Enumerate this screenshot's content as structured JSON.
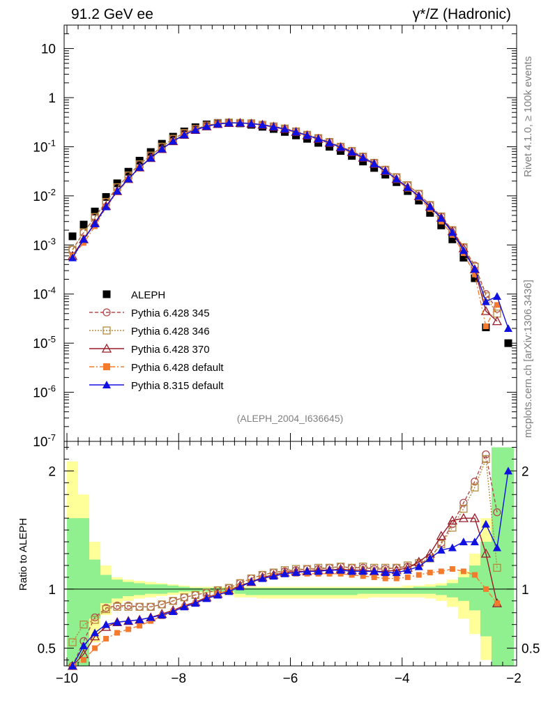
{
  "header": {
    "left_title": "91.2 GeV ee",
    "right_title": "γ*/Z (Hadronic)"
  },
  "side_labels": {
    "rivet": "Rivet 4.1.0, ≥ 100k events",
    "mcplots": "mcplots.cern.ch [arXiv:1306.3436]"
  },
  "analysis_tag": "(ALEPH_2004_I636645)",
  "ratio_ylabel": "Ratio to ALEPH",
  "colors": {
    "aleph": "#000000",
    "p345": "#b04a4a",
    "p346": "#b58a3a",
    "p370": "#9a1c28",
    "p6def": "#f47a2e",
    "p8": "#1010e0",
    "band_inner": "#90f090",
    "band_outer": "#ffff9a"
  },
  "chart_data": {
    "type": "scatter",
    "top_panel": {
      "y_scale": "log",
      "ylim": [
        1e-07,
        30
      ],
      "y_tick_labels": [
        "10",
        "1",
        "10^-1",
        "10^-2",
        "10^-3",
        "10^-4",
        "10^-5",
        "10^-6",
        "10^-7"
      ],
      "y_tick_values": [
        10,
        1,
        0.1,
        0.01,
        0.001,
        0.0001,
        1e-05,
        1e-06,
        1e-07
      ]
    },
    "ratio_panel": {
      "ylim": [
        0.35,
        2.25
      ],
      "y_tick_labels": [
        "0.5",
        "1",
        "2"
      ],
      "y_tick_values": [
        0.5,
        1,
        2
      ]
    },
    "xlim": [
      -10.05,
      -1.95
    ],
    "x_tick_labels": [
      "−10",
      "−8",
      "−6",
      "−4",
      "−2"
    ],
    "x_tick_values": [
      -10,
      -8,
      -6,
      -4,
      -2
    ],
    "x": [
      -9.9,
      -9.7,
      -9.5,
      -9.3,
      -9.1,
      -8.9,
      -8.7,
      -8.5,
      -8.3,
      -8.1,
      -7.9,
      -7.7,
      -7.5,
      -7.3,
      -7.1,
      -6.9,
      -6.7,
      -6.5,
      -6.3,
      -6.1,
      -5.9,
      -5.7,
      -5.5,
      -5.3,
      -5.1,
      -4.9,
      -4.7,
      -4.5,
      -4.3,
      -4.1,
      -3.9,
      -3.7,
      -3.5,
      -3.3,
      -3.1,
      -2.9,
      -2.7,
      -2.5,
      -2.3,
      -2.1
    ],
    "legend": [
      "ALEPH",
      "Pythia 6.428 345",
      "Pythia 6.428 346",
      "Pythia 6.428 370",
      "Pythia 6.428 default",
      "Pythia 8.315 default"
    ],
    "series": [
      {
        "name": "ALEPH",
        "values": [
          0.0015,
          0.0026,
          0.0048,
          0.0095,
          0.018,
          0.031,
          0.052,
          0.078,
          0.115,
          0.16,
          0.205,
          0.25,
          0.285,
          0.305,
          0.31,
          0.3,
          0.28,
          0.255,
          0.23,
          0.2,
          0.17,
          0.145,
          0.12,
          0.1,
          0.082,
          0.065,
          0.05,
          0.037,
          0.027,
          0.019,
          0.0125,
          0.008,
          0.0045,
          0.0025,
          0.0013,
          0.00055,
          0.00021,
          2.1e-05,
          null,
          1e-05
        ]
      },
      {
        "name": "Pythia 6.428 345",
        "values": [
          0.0008,
          0.0018,
          0.0037,
          0.0075,
          0.015,
          0.026,
          0.044,
          0.066,
          0.1,
          0.145,
          0.19,
          0.23,
          0.27,
          0.3,
          0.31,
          0.305,
          0.3,
          0.28,
          0.26,
          0.235,
          0.205,
          0.175,
          0.15,
          0.125,
          0.1,
          0.082,
          0.063,
          0.047,
          0.034,
          0.024,
          0.0165,
          0.011,
          0.0065,
          0.0038,
          0.002,
          0.0009,
          0.00038,
          0.0001,
          5e-05,
          null
        ],
        "ratio": [
          0.35,
          0.56,
          0.76,
          0.84,
          0.86,
          0.86,
          0.85,
          0.85,
          0.87,
          0.9,
          0.93,
          0.95,
          0.97,
          0.99,
          1.01,
          1.05,
          1.09,
          1.12,
          1.14,
          1.15,
          1.16,
          1.17,
          1.17,
          1.18,
          1.19,
          1.18,
          1.18,
          1.17,
          1.17,
          1.18,
          1.19,
          1.21,
          1.26,
          1.39,
          1.55,
          1.73,
          1.91,
          2.14,
          1.65,
          null
        ]
      },
      {
        "name": "Pythia 6.428 346",
        "values": [
          0.0008,
          0.0018,
          0.0037,
          0.0075,
          0.015,
          0.026,
          0.044,
          0.066,
          0.1,
          0.145,
          0.19,
          0.23,
          0.27,
          0.3,
          0.31,
          0.305,
          0.3,
          0.28,
          0.26,
          0.235,
          0.205,
          0.175,
          0.15,
          0.125,
          0.1,
          0.082,
          0.063,
          0.047,
          0.034,
          0.024,
          0.0165,
          0.011,
          0.0065,
          0.0038,
          0.002,
          0.0009,
          0.00036,
          9e-05,
          4e-05,
          null
        ],
        "ratio": [
          0.55,
          0.7,
          0.74,
          0.83,
          0.85,
          0.85,
          0.85,
          0.85,
          0.87,
          0.9,
          0.93,
          0.95,
          0.97,
          0.99,
          1.01,
          1.05,
          1.09,
          1.12,
          1.14,
          1.16,
          1.17,
          1.17,
          1.18,
          1.18,
          1.19,
          1.18,
          1.19,
          1.18,
          1.18,
          1.18,
          1.2,
          1.22,
          1.26,
          1.38,
          1.52,
          1.68,
          1.86,
          2.1,
          1.18,
          null
        ]
      },
      {
        "name": "Pythia 6.428 370",
        "values": [
          0.0006,
          0.0013,
          0.0028,
          0.0062,
          0.0125,
          0.022,
          0.038,
          0.059,
          0.09,
          0.13,
          0.175,
          0.22,
          0.26,
          0.29,
          0.305,
          0.305,
          0.295,
          0.28,
          0.255,
          0.23,
          0.2,
          0.17,
          0.145,
          0.12,
          0.097,
          0.078,
          0.06,
          0.045,
          0.032,
          0.022,
          0.015,
          0.0099,
          0.006,
          0.0036,
          0.0019,
          0.00085,
          0.00032,
          4.5e-05,
          2.8e-05,
          null
        ],
        "ratio": [
          0.35,
          0.45,
          0.6,
          0.68,
          0.72,
          0.73,
          0.74,
          0.76,
          0.79,
          0.82,
          0.86,
          0.89,
          0.93,
          0.96,
          0.99,
          1.03,
          1.06,
          1.1,
          1.12,
          1.14,
          1.15,
          1.15,
          1.16,
          1.16,
          1.17,
          1.16,
          1.16,
          1.15,
          1.15,
          1.16,
          1.18,
          1.23,
          1.3,
          1.45,
          1.58,
          1.6,
          1.6,
          1.3,
          0.88,
          null
        ]
      },
      {
        "name": "Pythia 6.428 default",
        "values": [
          0.0006,
          0.0011,
          0.0024,
          0.0058,
          0.012,
          0.021,
          0.037,
          0.058,
          0.088,
          0.13,
          0.175,
          0.22,
          0.26,
          0.29,
          0.305,
          0.305,
          0.295,
          0.275,
          0.25,
          0.225,
          0.195,
          0.165,
          0.14,
          0.115,
          0.094,
          0.075,
          0.058,
          0.043,
          0.031,
          0.021,
          0.014,
          0.0092,
          0.0054,
          0.003,
          0.0016,
          0.00068,
          0.00025,
          2.2e-05,
          6e-05,
          null
        ],
        "ratio": [
          0.35,
          0.4,
          0.5,
          0.58,
          0.63,
          0.66,
          0.69,
          0.73,
          0.77,
          0.81,
          0.85,
          0.88,
          0.92,
          0.96,
          0.99,
          1.02,
          1.06,
          1.09,
          1.11,
          1.13,
          1.13,
          1.13,
          1.13,
          1.13,
          1.13,
          1.12,
          1.11,
          1.1,
          1.09,
          1.09,
          1.1,
          1.12,
          1.14,
          1.15,
          1.17,
          1.15,
          1.12,
          1.0,
          0.88,
          null
        ]
      },
      {
        "name": "Pythia 8.315 default",
        "values": [
          0.00055,
          0.0013,
          0.0027,
          0.006,
          0.0125,
          0.022,
          0.038,
          0.059,
          0.09,
          0.13,
          0.175,
          0.22,
          0.26,
          0.29,
          0.305,
          0.305,
          0.295,
          0.28,
          0.255,
          0.23,
          0.2,
          0.17,
          0.145,
          0.12,
          0.097,
          0.078,
          0.06,
          0.045,
          0.032,
          0.022,
          0.0148,
          0.0098,
          0.006,
          0.0035,
          0.0018,
          0.00077,
          0.00032,
          7e-05,
          9e-05,
          2e-05
        ],
        "ratio": [
          0.35,
          0.52,
          0.63,
          0.7,
          0.72,
          0.73,
          0.74,
          0.76,
          0.78,
          0.81,
          0.85,
          0.88,
          0.92,
          0.95,
          0.98,
          1.02,
          1.06,
          1.09,
          1.11,
          1.13,
          1.14,
          1.15,
          1.15,
          1.16,
          1.16,
          1.15,
          1.15,
          1.15,
          1.14,
          1.14,
          1.16,
          1.19,
          1.26,
          1.33,
          1.35,
          1.4,
          1.4,
          1.55,
          1.35,
          2.0
        ]
      }
    ],
    "bands": {
      "inner_upper": [
        1.6,
        1.6,
        1.25,
        1.12,
        1.08,
        1.06,
        1.05,
        1.04,
        1.04,
        1.03,
        1.02,
        1.01,
        1.01,
        1.01,
        1.01,
        1.01,
        1.01,
        1.01,
        1.01,
        1.01,
        1.01,
        1.01,
        1.01,
        1.01,
        1.01,
        1.01,
        1.01,
        1.01,
        1.01,
        1.01,
        1.01,
        1.02,
        1.02,
        1.03,
        1.05,
        1.1,
        1.2,
        1.4,
        2.2,
        2.2
      ],
      "inner_lower": [
        0.35,
        0.35,
        0.75,
        0.88,
        0.92,
        0.94,
        0.95,
        0.96,
        0.96,
        0.97,
        0.98,
        0.98,
        0.98,
        0.98,
        0.98,
        0.96,
        0.95,
        0.95,
        0.95,
        0.95,
        0.95,
        0.95,
        0.95,
        0.95,
        0.95,
        0.95,
        0.96,
        0.96,
        0.96,
        0.96,
        0.96,
        0.96,
        0.96,
        0.95,
        0.93,
        0.9,
        0.82,
        0.6,
        0.35,
        0.35
      ],
      "outer_upper": [
        2.08,
        1.8,
        1.4,
        1.2,
        1.1,
        1.08,
        1.07,
        1.06,
        1.05,
        1.04,
        1.03,
        1.02,
        1.02,
        1.02,
        1.02,
        1.02,
        1.02,
        1.02,
        1.02,
        1.02,
        1.02,
        1.02,
        1.02,
        1.02,
        1.02,
        1.02,
        1.02,
        1.02,
        1.02,
        1.02,
        1.03,
        1.03,
        1.04,
        1.05,
        1.08,
        1.15,
        1.3,
        1.6,
        2.2,
        2.2
      ],
      "outer_lower": [
        0.35,
        0.35,
        0.55,
        0.78,
        0.88,
        0.9,
        0.92,
        0.93,
        0.94,
        0.95,
        0.96,
        0.97,
        0.97,
        0.97,
        0.95,
        0.93,
        0.93,
        0.92,
        0.92,
        0.92,
        0.92,
        0.92,
        0.92,
        0.92,
        0.92,
        0.92,
        0.92,
        0.93,
        0.93,
        0.93,
        0.93,
        0.93,
        0.92,
        0.9,
        0.85,
        0.75,
        0.62,
        0.4,
        0.35,
        0.35
      ]
    }
  }
}
